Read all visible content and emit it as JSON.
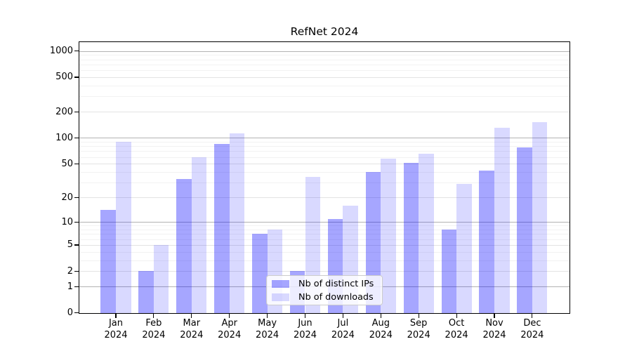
{
  "title": "RefNet 2024",
  "year_label": "2024",
  "colors": {
    "series_ips": "rgba(0,0,255,0.35)",
    "series_ips_hex_on_white": "#a6a6ff",
    "series_downloads": "rgba(0,0,255,0.15)",
    "series_downloads_hex_on_white": "#d9d9ff",
    "grid_decade": "#b3b3b3",
    "grid_labeled": "#e3e3e3",
    "grid_minor": "#f2f2f2",
    "spine": "#000000"
  },
  "legend": {
    "items": [
      {
        "label": "Nb of distinct IPs",
        "color": "rgba(0,0,255,0.35)"
      },
      {
        "label": "Nb of downloads",
        "color": "rgba(0,0,255,0.15)"
      }
    ]
  },
  "chart_data": {
    "type": "bar",
    "title": "RefNet 2024",
    "categories": [
      "Jan 2024",
      "Feb 2024",
      "Mar 2024",
      "Apr 2024",
      "May 2024",
      "Jun 2024",
      "Jul 2024",
      "Aug 2024",
      "Sep 2024",
      "Oct 2024",
      "Nov 2024",
      "Dec 2024"
    ],
    "month_short": [
      "Jan",
      "Feb",
      "Mar",
      "Apr",
      "May",
      "Jun",
      "Jul",
      "Aug",
      "Sep",
      "Oct",
      "Nov",
      "Dec"
    ],
    "series": [
      {
        "name": "Nb of distinct IPs",
        "values": [
          14,
          2,
          33,
          86,
          7,
          2,
          11,
          40,
          51,
          8,
          42,
          77
        ]
      },
      {
        "name": "Nb of downloads",
        "values": [
          90,
          5,
          60,
          112,
          8,
          35,
          16,
          57,
          65,
          29,
          130,
          153
        ]
      }
    ],
    "xlabel": "",
    "ylabel": "",
    "y_scale": "log1p",
    "ylim": [
      0,
      1250
    ],
    "y_ticks": [
      0,
      1,
      2,
      5,
      10,
      20,
      50,
      100,
      200,
      500,
      1000
    ],
    "y_minor_gridlines": [
      3,
      4,
      6,
      7,
      8,
      9,
      30,
      40,
      60,
      70,
      80,
      90,
      300,
      400,
      600,
      700,
      800,
      900
    ],
    "grid": true,
    "legend_position": "lower center"
  }
}
